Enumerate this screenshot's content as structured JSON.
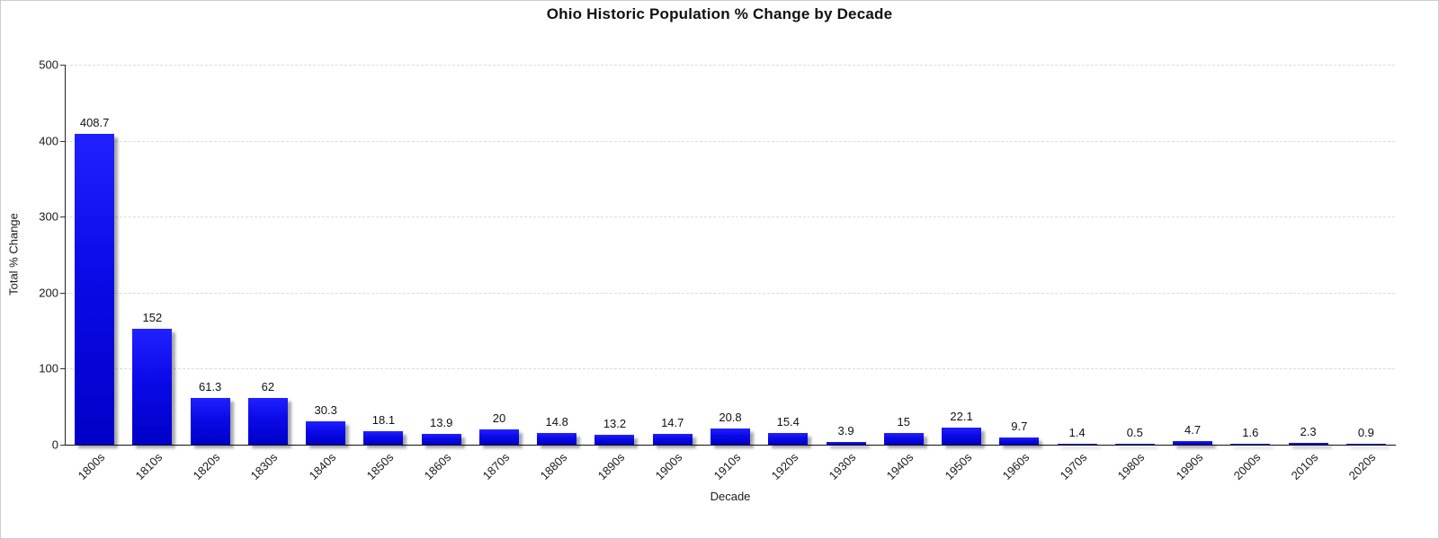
{
  "chart_data": {
    "type": "bar",
    "title": "Ohio Historic Population % Change by Decade",
    "xlabel": "Decade",
    "ylabel": "Total % Change",
    "categories": [
      "1800s",
      "1810s",
      "1820s",
      "1830s",
      "1840s",
      "1850s",
      "1860s",
      "1870s",
      "1880s",
      "1890s",
      "1900s",
      "1910s",
      "1920s",
      "1930s",
      "1940s",
      "1950s",
      "1960s",
      "1970s",
      "1980s",
      "1990s",
      "2000s",
      "2010s",
      "2020s"
    ],
    "values": [
      408.7,
      152,
      61.3,
      62,
      30.3,
      18.1,
      13.9,
      20,
      14.8,
      13.2,
      14.7,
      20.8,
      15.4,
      3.9,
      15,
      22.1,
      9.7,
      1.4,
      0.5,
      4.7,
      1.6,
      2.3,
      0.9
    ],
    "ylim": [
      0,
      500
    ],
    "yticks": [
      0,
      100,
      200,
      300,
      400,
      500
    ],
    "grid": "horizontal-dashed",
    "legend": "none",
    "value_labels_shown": true,
    "bar_color": "#0a0ae8",
    "shadow_color": "#9a9a9a",
    "background_color": "#ffffff",
    "border_color": "#cdcdcd"
  }
}
